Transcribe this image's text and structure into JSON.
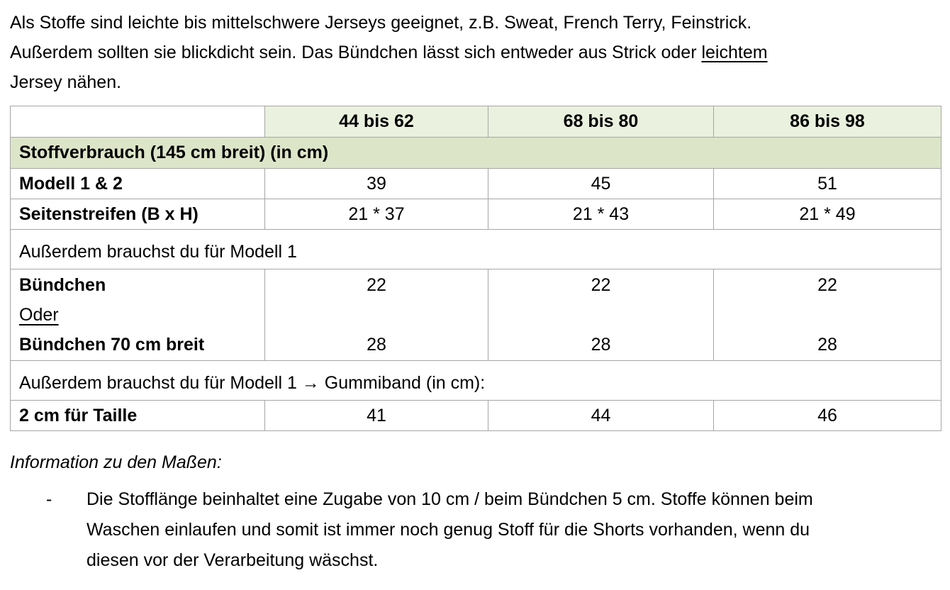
{
  "intro": {
    "line1": "Als Stoffe sind leichte bis mittelschwere Jerseys geeignet, z.B. Sweat, French Terry, Feinstrick.",
    "line2_pre": "Außerdem sollten sie blickdicht sein. Das Bündchen lässt sich entweder aus Strick oder ",
    "line2_underlined": "leichtem",
    "line3": "Jersey nähen."
  },
  "table": {
    "size_headers": [
      "44 bis 62",
      "68 bis 80",
      "86 bis 98"
    ],
    "section1_title": "Stoffverbrauch (145 cm breit) (in cm)",
    "rows_section1": [
      {
        "label": "Modell 1 & 2",
        "values": [
          "39",
          "45",
          "51"
        ]
      },
      {
        "label": "Seitenstreifen (B x H)",
        "values": [
          "21 * 37",
          "21 * 43",
          "21 * 49"
        ]
      }
    ],
    "section2_title": "Außerdem brauchst du für Modell 1",
    "buendchen_row": {
      "label_lines": [
        "Bündchen",
        "Oder",
        "Bündchen 70 cm breit"
      ],
      "col1": [
        "22",
        "",
        "28"
      ],
      "col2": [
        "22",
        "",
        "28"
      ],
      "col3": [
        "22",
        "",
        "28"
      ]
    },
    "section3_title": "Außerdem brauchst du für Modell 1 → Gummiband (in cm):",
    "taille_row": {
      "label": "2 cm für Taille",
      "values": [
        "41",
        "44",
        "46"
      ]
    }
  },
  "info": {
    "heading": "Information zu den Maßen:",
    "bullet_marker": "-",
    "bullet_lines": [
      "Die Stofflänge beinhaltet eine Zugabe von 10 cm / beim Bündchen 5 cm. Stoffe können beim",
      "Waschen einlaufen und somit ist immer noch genug Stoff für die Shorts vorhanden, wenn du",
      "diesen vor der Verarbeitung wäschst."
    ]
  },
  "colors": {
    "header_green": "#eaf1de",
    "band_green": "#dde5c9",
    "border_gray": "#a6a6a6"
  }
}
